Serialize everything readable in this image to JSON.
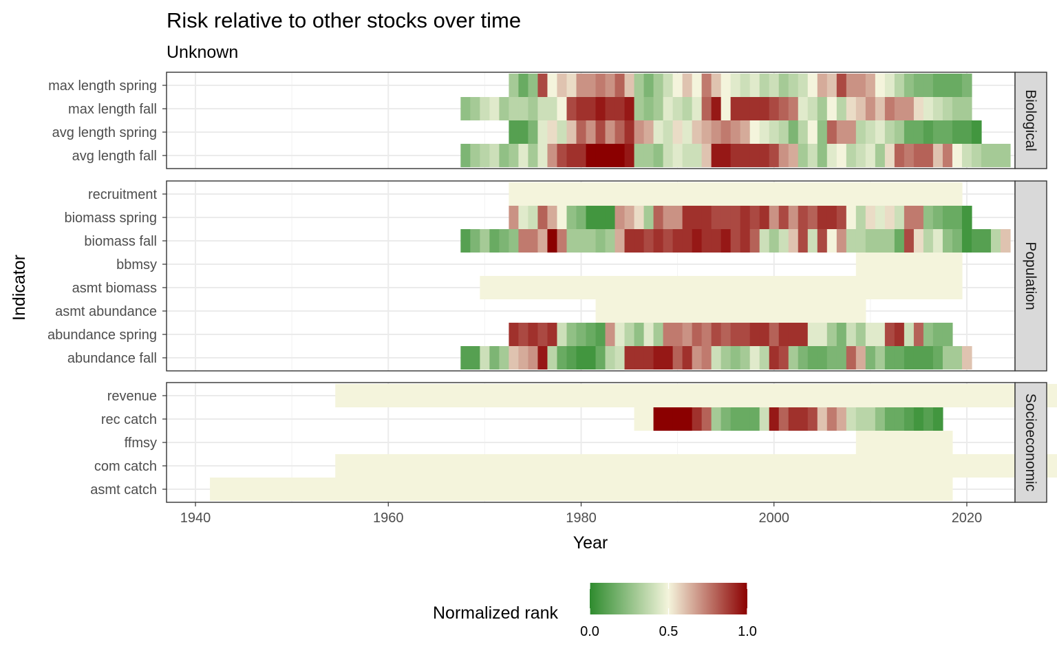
{
  "chart_data": {
    "type": "heatmap",
    "title": "Risk relative to other stocks over time",
    "subtitle": "Unknown",
    "xlabel": "Year",
    "ylabel": "Indicator",
    "xlim": [
      1937,
      2025
    ],
    "x_ticks": [
      1940,
      1960,
      1980,
      2000,
      2020
    ],
    "grid": true,
    "legend": {
      "title": "Normalized rank",
      "position": "bottom",
      "ticks": [
        0.0,
        0.5,
        1.0
      ],
      "tick_labels": [
        "0.0",
        "0.5",
        "1.0"
      ]
    },
    "color_scale": {
      "low": "#2e8b2e",
      "mid": "#f4f4dc",
      "high": "#8b0000",
      "midpoint": 0.5
    },
    "panels": [
      {
        "name": "Biological",
        "rows": [
          {
            "label": "max length spring",
            "start": 1973,
            "values": [
              0.3,
              0.15,
              0.25,
              0.85,
              0.5,
              0.6,
              0.55,
              0.7,
              0.7,
              0.75,
              0.7,
              0.8,
              0.6,
              0.3,
              0.2,
              0.3,
              0.4,
              0.5,
              0.6,
              0.5,
              0.75,
              0.6,
              0.5,
              0.45,
              0.4,
              0.45,
              0.35,
              0.4,
              0.3,
              0.35,
              0.4,
              0.5,
              0.65,
              0.6,
              0.85,
              0.7,
              0.7,
              0.65,
              0.5,
              0.45,
              0.35,
              0.25,
              0.2,
              0.2,
              0.15,
              0.15,
              0.15,
              0.2
            ]
          },
          {
            "label": "max length fall",
            "start": 1968,
            "values": [
              0.25,
              0.3,
              0.4,
              0.45,
              0.3,
              0.35,
              0.35,
              0.3,
              0.4,
              0.4,
              0.5,
              0.85,
              0.9,
              0.9,
              0.95,
              0.9,
              0.9,
              0.95,
              0.3,
              0.25,
              0.3,
              0.45,
              0.4,
              0.35,
              0.45,
              0.8,
              0.95,
              0.5,
              0.9,
              0.9,
              0.9,
              0.9,
              0.85,
              0.8,
              0.75,
              0.45,
              0.4,
              0.3,
              0.5,
              0.35,
              0.55,
              0.6,
              0.7,
              0.6,
              0.75,
              0.7,
              0.7,
              0.55,
              0.45,
              0.4,
              0.35,
              0.3,
              0.3
            ]
          },
          {
            "label": "avg length spring",
            "start": 1973,
            "values": [
              0.1,
              0.1,
              0.2,
              0.45,
              0.55,
              0.4,
              0.6,
              0.8,
              0.7,
              0.85,
              0.7,
              0.8,
              0.9,
              0.7,
              0.65,
              0.45,
              0.4,
              0.55,
              0.45,
              0.6,
              0.65,
              0.7,
              0.75,
              0.7,
              0.65,
              0.5,
              0.45,
              0.4,
              0.35,
              0.2,
              0.35,
              0.5,
              0.25,
              0.8,
              0.7,
              0.7,
              0.35,
              0.4,
              0.45,
              0.35,
              0.3,
              0.15,
              0.15,
              0.1,
              0.15,
              0.15,
              0.1,
              0.1,
              0.05
            ]
          },
          {
            "label": "avg length fall",
            "start": 1968,
            "values": [
              0.2,
              0.3,
              0.35,
              0.4,
              0.25,
              0.3,
              0.45,
              0.3,
              0.45,
              0.7,
              0.85,
              0.9,
              0.9,
              1.0,
              1.0,
              1.0,
              1.0,
              0.95,
              0.3,
              0.3,
              0.25,
              0.4,
              0.45,
              0.4,
              0.4,
              0.6,
              0.95,
              0.95,
              0.9,
              0.9,
              0.9,
              0.9,
              0.85,
              0.7,
              0.65,
              0.3,
              0.4,
              0.25,
              0.45,
              0.5,
              0.35,
              0.4,
              0.45,
              0.3,
              0.55,
              0.8,
              0.75,
              0.8,
              0.8,
              0.6,
              0.75,
              0.5,
              0.4,
              0.35,
              0.3,
              0.3,
              0.3
            ]
          }
        ]
      },
      {
        "name": "Population",
        "rows": [
          {
            "label": "recruitment",
            "start": 1973,
            "values": [
              0.5,
              0.5,
              0.5,
              0.5,
              0.5,
              0.5,
              0.5,
              0.5,
              0.5,
              0.5,
              0.5,
              0.5,
              0.5,
              0.5,
              0.5,
              0.5,
              0.5,
              0.5,
              0.5,
              0.5,
              0.5,
              0.5,
              0.5,
              0.5,
              0.5,
              0.5,
              0.5,
              0.5,
              0.5,
              0.5,
              0.5,
              0.5,
              0.5,
              0.5,
              0.5,
              0.5,
              0.5,
              0.5,
              0.5,
              0.5,
              0.5,
              0.5,
              0.5,
              0.5,
              0.5,
              0.5,
              0.5
            ]
          },
          {
            "label": "biomass spring",
            "start": 1973,
            "values": [
              0.7,
              0.45,
              0.4,
              0.8,
              0.65,
              0.5,
              0.25,
              0.2,
              0.05,
              0.05,
              0.05,
              0.7,
              0.65,
              0.55,
              0.3,
              0.8,
              0.7,
              0.7,
              0.9,
              0.9,
              0.9,
              0.85,
              0.85,
              0.85,
              0.9,
              0.85,
              0.9,
              0.7,
              0.85,
              0.7,
              0.85,
              0.8,
              0.9,
              0.9,
              0.85,
              0.5,
              0.35,
              0.55,
              0.45,
              0.55,
              0.4,
              0.75,
              0.75,
              0.25,
              0.2,
              0.15,
              0.15,
              0.05
            ]
          },
          {
            "label": "biomass fall",
            "start": 1968,
            "values": [
              0.1,
              0.2,
              0.3,
              0.15,
              0.2,
              0.25,
              0.75,
              0.75,
              0.65,
              1.0,
              0.75,
              0.3,
              0.3,
              0.3,
              0.25,
              0.3,
              0.65,
              0.9,
              0.9,
              0.85,
              0.9,
              0.85,
              0.9,
              0.9,
              0.95,
              0.9,
              0.9,
              0.95,
              0.85,
              0.9,
              0.8,
              0.4,
              0.3,
              0.4,
              0.6,
              0.85,
              0.4,
              0.85,
              0.5,
              0.7,
              0.35,
              0.35,
              0.3,
              0.3,
              0.3,
              0.15,
              0.85,
              0.55,
              0.35,
              0.45,
              0.25,
              0.2,
              0.05,
              0.1,
              0.1,
              0.35,
              0.6
            ]
          },
          {
            "label": "bbmsy",
            "start": 2009,
            "values": [
              0.5,
              0.5,
              0.5,
              0.5,
              0.5,
              0.5,
              0.5,
              0.5,
              0.5,
              0.5,
              0.5
            ]
          },
          {
            "label": "asmt biomass",
            "start": 1970,
            "values": [
              0.5,
              0.5,
              0.5,
              0.5,
              0.5,
              0.5,
              0.5,
              0.5,
              0.5,
              0.5,
              0.5,
              0.5,
              0.5,
              0.5,
              0.5,
              0.5,
              0.5,
              0.5,
              0.5,
              0.5,
              0.5,
              0.5,
              0.5,
              0.5,
              0.5,
              0.5,
              0.5,
              0.5,
              0.5,
              0.5,
              0.5,
              0.5,
              0.5,
              0.5,
              0.5,
              0.5,
              0.5,
              0.5,
              0.5,
              0.5,
              0.5,
              0.5,
              0.5,
              0.5,
              0.5,
              0.5,
              0.5,
              0.5,
              0.5,
              0.5
            ]
          },
          {
            "label": "asmt abundance",
            "start": 1982,
            "values": [
              0.5,
              0.5,
              0.5,
              0.5,
              0.5,
              0.5,
              0.5,
              0.5,
              0.5,
              0.5,
              0.5,
              0.5,
              0.5,
              0.5,
              0.5,
              0.5,
              0.5,
              0.5,
              0.5,
              0.5,
              0.5,
              0.5,
              0.5,
              0.5,
              0.5,
              0.5,
              0.5,
              0.5
            ]
          },
          {
            "label": "abundance spring",
            "start": 1973,
            "values": [
              0.9,
              0.85,
              0.9,
              0.85,
              0.9,
              0.4,
              0.25,
              0.2,
              0.15,
              0.1,
              0.7,
              0.45,
              0.35,
              0.25,
              0.45,
              0.3,
              0.75,
              0.75,
              0.7,
              0.8,
              0.75,
              0.85,
              0.8,
              0.85,
              0.85,
              0.9,
              0.9,
              0.8,
              0.9,
              0.9,
              0.9,
              0.45,
              0.45,
              0.3,
              0.2,
              0.4,
              0.3,
              0.45,
              0.45,
              0.85,
              0.9,
              0.4,
              0.8,
              0.25,
              0.2,
              0.2
            ]
          },
          {
            "label": "abundance fall",
            "start": 1968,
            "values": [
              0.1,
              0.1,
              0.4,
              0.2,
              0.3,
              0.6,
              0.65,
              0.7,
              0.95,
              0.35,
              0.15,
              0.1,
              0.05,
              0.05,
              0.15,
              0.35,
              0.4,
              0.9,
              0.9,
              0.9,
              0.95,
              0.95,
              0.8,
              0.9,
              0.7,
              0.75,
              0.4,
              0.3,
              0.25,
              0.3,
              0.45,
              0.35,
              0.9,
              0.85,
              0.3,
              0.2,
              0.15,
              0.15,
              0.2,
              0.2,
              0.8,
              0.65,
              0.2,
              0.3,
              0.15,
              0.15,
              0.1,
              0.1,
              0.1,
              0.15,
              0.3,
              0.3,
              0.6
            ]
          }
        ]
      },
      {
        "name": "Socioeconomic",
        "rows": [
          {
            "label": "revenue",
            "start": 1955,
            "values": [
              0.5,
              0.5,
              0.5,
              0.5,
              0.5,
              0.5,
              0.5,
              0.5,
              0.5,
              0.5,
              0.5,
              0.5,
              0.5,
              0.5,
              0.5,
              0.5,
              0.5,
              0.5,
              0.5,
              0.5,
              0.5,
              0.5,
              0.5,
              0.5,
              0.5,
              0.5,
              0.5,
              0.5,
              0.5,
              0.5,
              0.5,
              0.5,
              0.5,
              0.5,
              0.5,
              0.5,
              0.5,
              0.5,
              0.5,
              0.5,
              0.5,
              0.5,
              0.5,
              0.5,
              0.5,
              0.5,
              0.5,
              0.5,
              0.5,
              0.5,
              0.5,
              0.5,
              0.5,
              0.5,
              0.5,
              0.5,
              0.5,
              0.5,
              0.5,
              0.5,
              0.5,
              0.5,
              0.5,
              0.5,
              0.5,
              0.5,
              0.5,
              0.5,
              0.5,
              0.5,
              0.5,
              0.5,
              0.5,
              0.5,
              0.5,
              0.5,
              0.5,
              0.5,
              0.5,
              0.5,
              0.5,
              0.5,
              0.5,
              0.5,
              0.5,
              0.5,
              0.5,
              0.5,
              0.5,
              0.5,
              0.5,
              0.5,
              0.5,
              0.5,
              0.5,
              0.5,
              0.5,
              0.5,
              0.5,
              0.5,
              0.5,
              0.5,
              0.5,
              0.5
            ]
          },
          {
            "label": "rec catch",
            "start": 1986,
            "values": [
              0.5,
              0.5,
              1.0,
              1.0,
              1.0,
              1.0,
              0.9,
              0.8,
              0.3,
              0.2,
              0.15,
              0.15,
              0.15,
              0.4,
              0.95,
              0.8,
              0.9,
              0.9,
              0.85,
              0.6,
              0.75,
              0.65,
              0.4,
              0.35,
              0.35,
              0.25,
              0.15,
              0.15,
              0.1,
              0.05,
              0.1,
              0.05
            ]
          },
          {
            "label": "ffmsy",
            "start": 2009,
            "values": [
              0.5,
              0.5,
              0.5,
              0.5,
              0.5,
              0.5,
              0.5,
              0.5,
              0.5,
              0.5
            ]
          },
          {
            "label": "com catch",
            "start": 1955,
            "values": [
              0.5,
              0.5,
              0.5,
              0.5,
              0.5,
              0.5,
              0.5,
              0.5,
              0.5,
              0.5,
              0.5,
              0.5,
              0.5,
              0.5,
              0.5,
              0.5,
              0.5,
              0.5,
              0.5,
              0.5,
              0.5,
              0.5,
              0.5,
              0.5,
              0.5,
              0.5,
              0.5,
              0.5,
              0.5,
              0.5,
              0.5,
              0.5,
              0.5,
              0.5,
              0.5,
              0.5,
              0.5,
              0.5,
              0.5,
              0.5,
              0.5,
              0.5,
              0.5,
              0.5,
              0.5,
              0.5,
              0.5,
              0.5,
              0.5,
              0.5,
              0.5,
              0.5,
              0.5,
              0.5,
              0.5,
              0.5,
              0.5,
              0.5,
              0.5,
              0.5,
              0.5,
              0.5,
              0.5,
              0.5,
              0.5,
              0.5,
              0.5,
              0.5,
              0.5,
              0.5,
              0.5,
              0.5,
              0.5,
              0.5,
              0.5,
              0.5,
              0.5,
              0.5,
              0.5,
              0.5,
              0.5,
              0.5,
              0.5,
              0.5,
              0.5,
              0.5,
              0.5,
              0.5,
              0.5,
              0.5,
              0.5,
              0.5,
              0.5,
              0.5,
              0.5,
              0.5,
              0.5,
              0.5,
              0.5,
              0.5,
              0.5,
              0.5,
              0.5,
              0.5
            ]
          },
          {
            "label": "asmt catch",
            "start": 1942,
            "values": [
              0.5,
              0.5,
              0.5,
              0.5,
              0.5,
              0.5,
              0.5,
              0.5,
              0.5,
              0.5,
              0.5,
              0.5,
              0.5,
              0.5,
              0.5,
              0.5,
              0.5,
              0.5,
              0.5,
              0.5,
              0.5,
              0.5,
              0.5,
              0.5,
              0.5,
              0.5,
              0.5,
              0.5,
              0.5,
              0.5,
              0.5,
              0.5,
              0.5,
              0.5,
              0.5,
              0.5,
              0.5,
              0.5,
              0.5,
              0.5,
              0.5,
              0.5,
              0.5,
              0.5,
              0.5,
              0.5,
              0.5,
              0.5,
              0.5,
              0.5,
              0.5,
              0.5,
              0.5,
              0.5,
              0.5,
              0.5,
              0.5,
              0.5,
              0.5,
              0.5,
              0.5,
              0.5,
              0.5,
              0.5,
              0.5,
              0.5,
              0.5,
              0.5,
              0.5,
              0.5,
              0.5,
              0.5,
              0.5,
              0.5,
              0.5,
              0.5,
              0.5
            ]
          }
        ]
      }
    ]
  }
}
